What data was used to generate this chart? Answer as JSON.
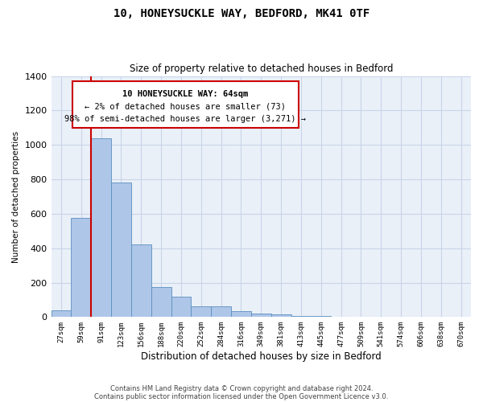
{
  "title": "10, HONEYSUCKLE WAY, BEDFORD, MK41 0TF",
  "subtitle": "Size of property relative to detached houses in Bedford",
  "xlabel": "Distribution of detached houses by size in Bedford",
  "ylabel": "Number of detached properties",
  "categories": [
    "27sqm",
    "59sqm",
    "91sqm",
    "123sqm",
    "156sqm",
    "188sqm",
    "220sqm",
    "252sqm",
    "284sqm",
    "316sqm",
    "349sqm",
    "381sqm",
    "413sqm",
    "445sqm",
    "477sqm",
    "509sqm",
    "541sqm",
    "574sqm",
    "606sqm",
    "638sqm",
    "670sqm"
  ],
  "values": [
    40,
    575,
    1040,
    780,
    420,
    175,
    120,
    62,
    60,
    35,
    20,
    15,
    8,
    4,
    2,
    1,
    1,
    0,
    0,
    0,
    0
  ],
  "bar_color": "#aec6e8",
  "bar_edge_color": "#5a8fc0",
  "vline_x": 1.5,
  "vline_color": "#cc0000",
  "annotation_box_color": "#cc0000",
  "annotation_title": "10 HONEYSUCKLE WAY: 64sqm",
  "annotation_line1": "← 2% of detached houses are smaller (73)",
  "annotation_line2": "98% of semi-detached houses are larger (3,271) →",
  "background_color": "#ffffff",
  "plot_bg_color": "#eaf0f8",
  "grid_color": "#c8d4e8",
  "footer1": "Contains HM Land Registry data © Crown copyright and database right 2024.",
  "footer2": "Contains public sector information licensed under the Open Government Licence v3.0.",
  "ylim": [
    0,
    1400
  ],
  "yticks": [
    0,
    200,
    400,
    600,
    800,
    1000,
    1200,
    1400
  ]
}
